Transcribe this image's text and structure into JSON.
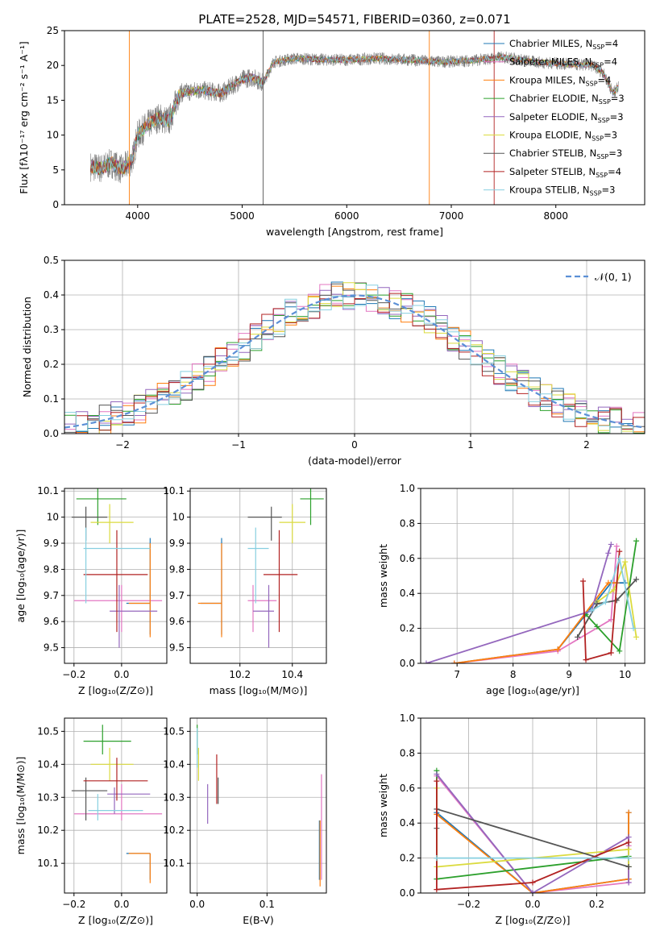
{
  "page_title": "PLATE=2528, MJD=54571, FIBERID=0360, z=0.071",
  "colors": {
    "Chabrier MILES": "#1f77b4",
    "Salpeter MILES": "#e377c2",
    "Kroupa MILES": "#ff7f0e",
    "Chabrier ELODIE": "#2ca02c",
    "Salpeter ELODIE": "#9467bd",
    "Kroupa ELODIE": "#dbdb3f",
    "Chabrier STELIB": "#555555",
    "Salpeter STELIB": "#b22222",
    "Kroupa STELIB": "#87cfe0",
    "data": "#808080",
    "fit_line": "#6fcfd8",
    "gaussian": "#5b8fd6"
  },
  "chart_data": [
    {
      "id": "spectrum",
      "type": "line",
      "title": "PLATE=2528, MJD=54571, FIBERID=0360, z=0.071",
      "xlabel": "wavelength [Angstrom, rest frame]",
      "ylabel": "Flux [fλ10⁻¹⁷ erg cm⁻² s⁻¹ A⁻¹]",
      "xlim": [
        3300,
        8850
      ],
      "ylim": [
        0,
        25
      ],
      "xticks": [
        4000,
        5000,
        6000,
        7000,
        8000
      ],
      "yticks": [
        0,
        5,
        10,
        15,
        20,
        25
      ],
      "grid": false,
      "legend_position": "top-right",
      "legend": [
        {
          "base": "Chabrier MILES",
          "n": "4"
        },
        {
          "base": "Salpeter MILES",
          "n": "4"
        },
        {
          "base": "Kroupa MILES",
          "n": "4"
        },
        {
          "base": "Chabrier ELODIE",
          "n": "3"
        },
        {
          "base": "Salpeter ELODIE",
          "n": "3"
        },
        {
          "base": "Kroupa ELODIE",
          "n": "3"
        },
        {
          "base": "Chabrier STELIB",
          "n": "3"
        },
        {
          "base": "Salpeter STELIB",
          "n": "4"
        },
        {
          "base": "Kroupa STELIB",
          "n": "3"
        }
      ],
      "continuum_points": [
        [
          3550,
          5.5
        ],
        [
          3650,
          5.2
        ],
        [
          3750,
          6.0
        ],
        [
          3850,
          5.0
        ],
        [
          3950,
          6.5
        ],
        [
          4000,
          10.0
        ],
        [
          4100,
          11.5
        ],
        [
          4200,
          12.5
        ],
        [
          4300,
          12.0
        ],
        [
          4400,
          16.0
        ],
        [
          4600,
          16.5
        ],
        [
          4800,
          16.0
        ],
        [
          5000,
          18.0
        ],
        [
          5100,
          18.3
        ],
        [
          5200,
          17.5
        ],
        [
          5300,
          20.5
        ],
        [
          5500,
          21.0
        ],
        [
          5800,
          20.8
        ],
        [
          6000,
          20.8
        ],
        [
          6300,
          21.0
        ],
        [
          6600,
          20.8
        ],
        [
          6900,
          20.5
        ],
        [
          7200,
          20.7
        ],
        [
          7500,
          21.2
        ],
        [
          7800,
          20.5
        ],
        [
          8100,
          20.2
        ],
        [
          8350,
          20.0
        ],
        [
          8450,
          19.0
        ],
        [
          8550,
          16.0
        ],
        [
          8600,
          17.0
        ]
      ]
    },
    {
      "id": "residuals",
      "type": "histogram",
      "xlabel": "(data-model)/error",
      "ylabel": "Normed distribution",
      "xlim": [
        -2.5,
        2.5
      ],
      "ylim": [
        0,
        0.5
      ],
      "xticks": [
        -2,
        -1,
        0,
        1,
        2
      ],
      "yticks": [
        0.0,
        0.1,
        0.2,
        0.3,
        0.4,
        0.5
      ],
      "grid": true,
      "legend_position": "top-right",
      "gaussian_label": "𝒩(0, 1)",
      "bin_width": 0.1
    },
    {
      "id": "age_vs_Z",
      "type": "scatter",
      "xlabel": "Z [log₁₀(Z/Z⊙)]",
      "ylabel": "age  [log₁₀(age/yr)]",
      "xlim": [
        -0.24,
        0.19
      ],
      "ylim": [
        9.44,
        10.11
      ],
      "xticks": [
        -0.2,
        0.0
      ],
      "yticks": [
        9.5,
        9.6,
        9.7,
        9.8,
        9.9,
        10.0,
        10.1
      ],
      "grid": true,
      "points": [
        {
          "model": "Chabrier MILES",
          "x": 0.12,
          "xerr": [
            0.1,
            0.0
          ],
          "y": 9.67,
          "yerr": [
            0.12,
            0.25
          ]
        },
        {
          "model": "Salpeter MILES",
          "x": 0.0,
          "xerr": [
            0.2,
            0.17
          ],
          "y": 9.68,
          "yerr": [
            0.12,
            0.06
          ]
        },
        {
          "model": "Kroupa MILES",
          "x": 0.12,
          "xerr": [
            0.09,
            0.0
          ],
          "y": 9.67,
          "yerr": [
            0.13,
            0.23
          ]
        },
        {
          "model": "Chabrier ELODIE",
          "x": -0.1,
          "xerr": [
            0.09,
            0.12
          ],
          "y": 10.07,
          "yerr": [
            0.1,
            0.05
          ]
        },
        {
          "model": "Salpeter ELODIE",
          "x": -0.01,
          "xerr": [
            0.04,
            0.16
          ],
          "y": 9.64,
          "yerr": [
            0.14,
            0.1
          ]
        },
        {
          "model": "Kroupa ELODIE",
          "x": -0.05,
          "xerr": [
            0.08,
            0.1
          ],
          "y": 9.98,
          "yerr": [
            0.08,
            0.07
          ]
        },
        {
          "model": "Chabrier STELIB",
          "x": -0.15,
          "xerr": [
            0.06,
            0.09
          ],
          "y": 10.0,
          "yerr": [
            0.09,
            0.04
          ]
        },
        {
          "model": "Salpeter STELIB",
          "x": -0.02,
          "xerr": [
            0.14,
            0.13
          ],
          "y": 9.78,
          "yerr": [
            0.22,
            0.17
          ]
        },
        {
          "model": "Kroupa STELIB",
          "x": -0.15,
          "xerr": [
            0.01,
            0.27
          ],
          "y": 9.88,
          "yerr": [
            0.21,
            0.08
          ]
        }
      ]
    },
    {
      "id": "age_vs_mass",
      "type": "scatter",
      "xlabel": "mass [log₁₀(M/M⊙)]",
      "ylabel": "",
      "xlim": [
        10.01,
        10.53
      ],
      "ylim": [
        9.44,
        10.11
      ],
      "xticks": [
        10.2,
        10.4
      ],
      "yticks": [
        9.5,
        9.6,
        9.7,
        9.8,
        9.9,
        10.0,
        10.1
      ],
      "grid": true,
      "points": [
        {
          "model": "Chabrier MILES",
          "x": 10.13,
          "xerr": [
            0.08,
            0.0
          ],
          "y": 9.67,
          "yerr": [
            0.12,
            0.25
          ]
        },
        {
          "model": "Salpeter MILES",
          "x": 10.25,
          "xerr": [
            0.02,
            0.09
          ],
          "y": 9.68,
          "yerr": [
            0.12,
            0.06
          ]
        },
        {
          "model": "Kroupa MILES",
          "x": 10.13,
          "xerr": [
            0.09,
            0.0
          ],
          "y": 9.67,
          "yerr": [
            0.13,
            0.23
          ]
        },
        {
          "model": "Chabrier ELODIE",
          "x": 10.47,
          "xerr": [
            0.04,
            0.05
          ],
          "y": 10.07,
          "yerr": [
            0.1,
            0.05
          ]
        },
        {
          "model": "Salpeter ELODIE",
          "x": 10.31,
          "xerr": [
            0.06,
            0.02
          ],
          "y": 9.64,
          "yerr": [
            0.14,
            0.1
          ]
        },
        {
          "model": "Kroupa ELODIE",
          "x": 10.4,
          "xerr": [
            0.05,
            0.05
          ],
          "y": 9.98,
          "yerr": [
            0.08,
            0.07
          ]
        },
        {
          "model": "Chabrier STELIB",
          "x": 10.32,
          "xerr": [
            0.09,
            0.04
          ],
          "y": 10.0,
          "yerr": [
            0.09,
            0.04
          ]
        },
        {
          "model": "Salpeter STELIB",
          "x": 10.35,
          "xerr": [
            0.06,
            0.07
          ],
          "y": 9.78,
          "yerr": [
            0.22,
            0.17
          ]
        },
        {
          "model": "Kroupa STELIB",
          "x": 10.26,
          "xerr": [
            0.03,
            0.05
          ],
          "y": 9.88,
          "yerr": [
            0.21,
            0.08
          ]
        }
      ]
    },
    {
      "id": "mass_weight_vs_age",
      "type": "line",
      "xlabel": "age  [log₁₀(age/yr)]",
      "ylabel": "mass weight",
      "xlim": [
        6.35,
        10.35
      ],
      "ylim": [
        0,
        1
      ],
      "xticks": [
        7,
        8,
        9,
        10
      ],
      "yticks": [
        0.0,
        0.2,
        0.4,
        0.6,
        0.8,
        1.0
      ],
      "grid": true,
      "series": [
        {
          "model": "Chabrier MILES",
          "x": [
            6.95,
            8.8,
            9.75,
            10.0
          ],
          "y": [
            0.0,
            0.08,
            0.46,
            0.46
          ]
        },
        {
          "model": "Salpeter MILES",
          "x": [
            6.95,
            8.8,
            9.75,
            9.85
          ],
          "y": [
            0.0,
            0.07,
            0.25,
            0.67
          ]
        },
        {
          "model": "Kroupa MILES",
          "x": [
            6.95,
            8.8,
            9.7,
            9.85
          ],
          "y": [
            0.0,
            0.08,
            0.46,
            0.46
          ]
        },
        {
          "model": "Chabrier ELODIE",
          "x": [
            9.3,
            9.5,
            9.9,
            10.2
          ],
          "y": [
            0.28,
            0.21,
            0.07,
            0.7
          ]
        },
        {
          "model": "Salpeter ELODIE",
          "x": [
            6.45,
            9.4,
            9.7,
            9.75
          ],
          "y": [
            0.0,
            0.3,
            0.63,
            0.68
          ]
        },
        {
          "model": "Kroupa ELODIE",
          "x": [
            9.5,
            9.8,
            10.0,
            10.2
          ],
          "y": [
            0.35,
            0.42,
            0.58,
            0.15
          ]
        },
        {
          "model": "Chabrier STELIB",
          "x": [
            9.15,
            9.5,
            9.85,
            10.2
          ],
          "y": [
            0.15,
            0.34,
            0.36,
            0.48
          ]
        },
        {
          "model": "Salpeter STELIB",
          "x": [
            9.25,
            9.3,
            9.75,
            9.9
          ],
          "y": [
            0.47,
            0.02,
            0.06,
            0.64
          ]
        },
        {
          "model": "Kroupa STELIB",
          "x": [
            9.4,
            9.65,
            9.9,
            10.15
          ],
          "y": [
            0.3,
            0.35,
            0.6,
            0.2
          ]
        }
      ]
    },
    {
      "id": "mass_vs_Z",
      "type": "scatter",
      "xlabel": "Z [log₁₀(Z/Z⊙)]",
      "ylabel": "mass [log₁₀(M/M⊙)]",
      "xlim": [
        -0.24,
        0.19
      ],
      "ylim": [
        10.01,
        10.54
      ],
      "xticks": [
        -0.2,
        0.0
      ],
      "yticks": [
        10.1,
        10.2,
        10.3,
        10.4,
        10.5
      ],
      "grid": true,
      "points": [
        {
          "model": "Chabrier MILES",
          "x": 0.12,
          "xerr": [
            0.1,
            0.0
          ],
          "y": 10.13,
          "yerr": [
            0.08,
            0.0
          ]
        },
        {
          "model": "Salpeter MILES",
          "x": 0.0,
          "xerr": [
            0.2,
            0.17
          ],
          "y": 10.25,
          "yerr": [
            0.02,
            0.09
          ]
        },
        {
          "model": "Kroupa MILES",
          "x": 0.12,
          "xerr": [
            0.09,
            0.0
          ],
          "y": 10.13,
          "yerr": [
            0.09,
            0.0
          ]
        },
        {
          "model": "Chabrier ELODIE",
          "x": -0.08,
          "xerr": [
            0.08,
            0.12
          ],
          "y": 10.47,
          "yerr": [
            0.04,
            0.05
          ]
        },
        {
          "model": "Salpeter ELODIE",
          "x": -0.03,
          "xerr": [
            0.03,
            0.15
          ],
          "y": 10.31,
          "yerr": [
            0.06,
            0.02
          ]
        },
        {
          "model": "Kroupa ELODIE",
          "x": -0.05,
          "xerr": [
            0.08,
            0.1
          ],
          "y": 10.4,
          "yerr": [
            0.05,
            0.05
          ]
        },
        {
          "model": "Chabrier STELIB",
          "x": -0.15,
          "xerr": [
            0.06,
            0.09
          ],
          "y": 10.32,
          "yerr": [
            0.09,
            0.04
          ]
        },
        {
          "model": "Salpeter STELIB",
          "x": -0.02,
          "xerr": [
            0.14,
            0.13
          ],
          "y": 10.35,
          "yerr": [
            0.06,
            0.07
          ]
        },
        {
          "model": "Kroupa STELIB",
          "x": -0.1,
          "xerr": [
            0.04,
            0.19
          ],
          "y": 10.26,
          "yerr": [
            0.03,
            0.05
          ]
        }
      ]
    },
    {
      "id": "mass_vs_ebv",
      "type": "scatter",
      "xlabel": "E(B-V)",
      "ylabel": "",
      "xlim": [
        -0.01,
        0.185
      ],
      "ylim": [
        10.01,
        10.54
      ],
      "xticks": [
        0.0,
        0.1
      ],
      "yticks": [
        10.1,
        10.2,
        10.3,
        10.4,
        10.5
      ],
      "grid": true,
      "points": [
        {
          "model": "Chabrier MILES",
          "x": 0.175,
          "y": 10.13,
          "yerr": [
            0.08,
            0.1
          ]
        },
        {
          "model": "Salpeter MILES",
          "x": 0.178,
          "y": 10.25,
          "yerr": [
            0.2,
            0.12
          ]
        },
        {
          "model": "Kroupa MILES",
          "x": 0.176,
          "y": 10.13,
          "yerr": [
            0.1,
            0.1
          ]
        },
        {
          "model": "Chabrier ELODIE",
          "x": 0.0,
          "y": 10.47,
          "yerr": [
            0.04,
            0.05
          ]
        },
        {
          "model": "Salpeter ELODIE",
          "x": 0.015,
          "y": 10.28,
          "yerr": [
            0.06,
            0.06
          ]
        },
        {
          "model": "Kroupa ELODIE",
          "x": 0.002,
          "y": 10.4,
          "yerr": [
            0.05,
            0.05
          ]
        },
        {
          "model": "Chabrier STELIB",
          "x": 0.03,
          "y": 10.32,
          "yerr": [
            0.04,
            0.04
          ]
        },
        {
          "model": "Salpeter STELIB",
          "x": 0.028,
          "y": 10.35,
          "yerr": [
            0.07,
            0.08
          ]
        },
        {
          "model": "Kroupa STELIB",
          "x": 0.0,
          "y": 10.45,
          "yerr": [
            0.06,
            0.06
          ]
        }
      ]
    },
    {
      "id": "mass_weight_vs_Z",
      "type": "line",
      "xlabel": "Z [log₁₀(Z/Z⊙)]",
      "ylabel": "mass weight",
      "xlim": [
        -0.35,
        0.35
      ],
      "ylim": [
        0,
        1
      ],
      "xticks": [
        -0.2,
        0.0,
        0.2
      ],
      "yticks": [
        0.0,
        0.2,
        0.4,
        0.6,
        0.8,
        1.0
      ],
      "grid": true,
      "series": [
        {
          "model": "Chabrier MILES",
          "x": [
            -0.3,
            0.0,
            0.3,
            0.3
          ],
          "y": [
            0.46,
            0.0,
            0.08,
            0.46
          ]
        },
        {
          "model": "Salpeter MILES",
          "x": [
            -0.3,
            0.0,
            0.3,
            0.3
          ],
          "y": [
            0.67,
            0.0,
            0.06,
            0.27
          ]
        },
        {
          "model": "Kroupa MILES",
          "x": [
            -0.3,
            0.0,
            0.3,
            0.3
          ],
          "y": [
            0.45,
            0.0,
            0.08,
            0.46
          ]
        },
        {
          "model": "Chabrier ELODIE",
          "x": [
            -0.3,
            -0.3,
            0.3,
            0.3
          ],
          "y": [
            0.7,
            0.08,
            0.21,
            0.15
          ]
        },
        {
          "model": "Salpeter ELODIE",
          "x": [
            -0.3,
            0.0,
            0.3,
            0.3
          ],
          "y": [
            0.68,
            0.0,
            0.32,
            0.06
          ]
        },
        {
          "model": "Kroupa ELODIE",
          "x": [
            -0.3,
            -0.3,
            0.3,
            0.3
          ],
          "y": [
            0.6,
            0.15,
            0.25,
            0.15
          ]
        },
        {
          "model": "Chabrier STELIB",
          "x": [
            -0.3,
            -0.3,
            0.3,
            0.3
          ],
          "y": [
            0.37,
            0.48,
            0.15,
            0.15
          ]
        },
        {
          "model": "Salpeter STELIB",
          "x": [
            -0.3,
            -0.3,
            0.0,
            0.3
          ],
          "y": [
            0.64,
            0.02,
            0.06,
            0.29
          ]
        },
        {
          "model": "Kroupa STELIB",
          "x": [
            -0.3,
            -0.3,
            0.3,
            0.3
          ],
          "y": [
            0.2,
            0.2,
            0.2,
            0.2
          ]
        }
      ]
    }
  ]
}
